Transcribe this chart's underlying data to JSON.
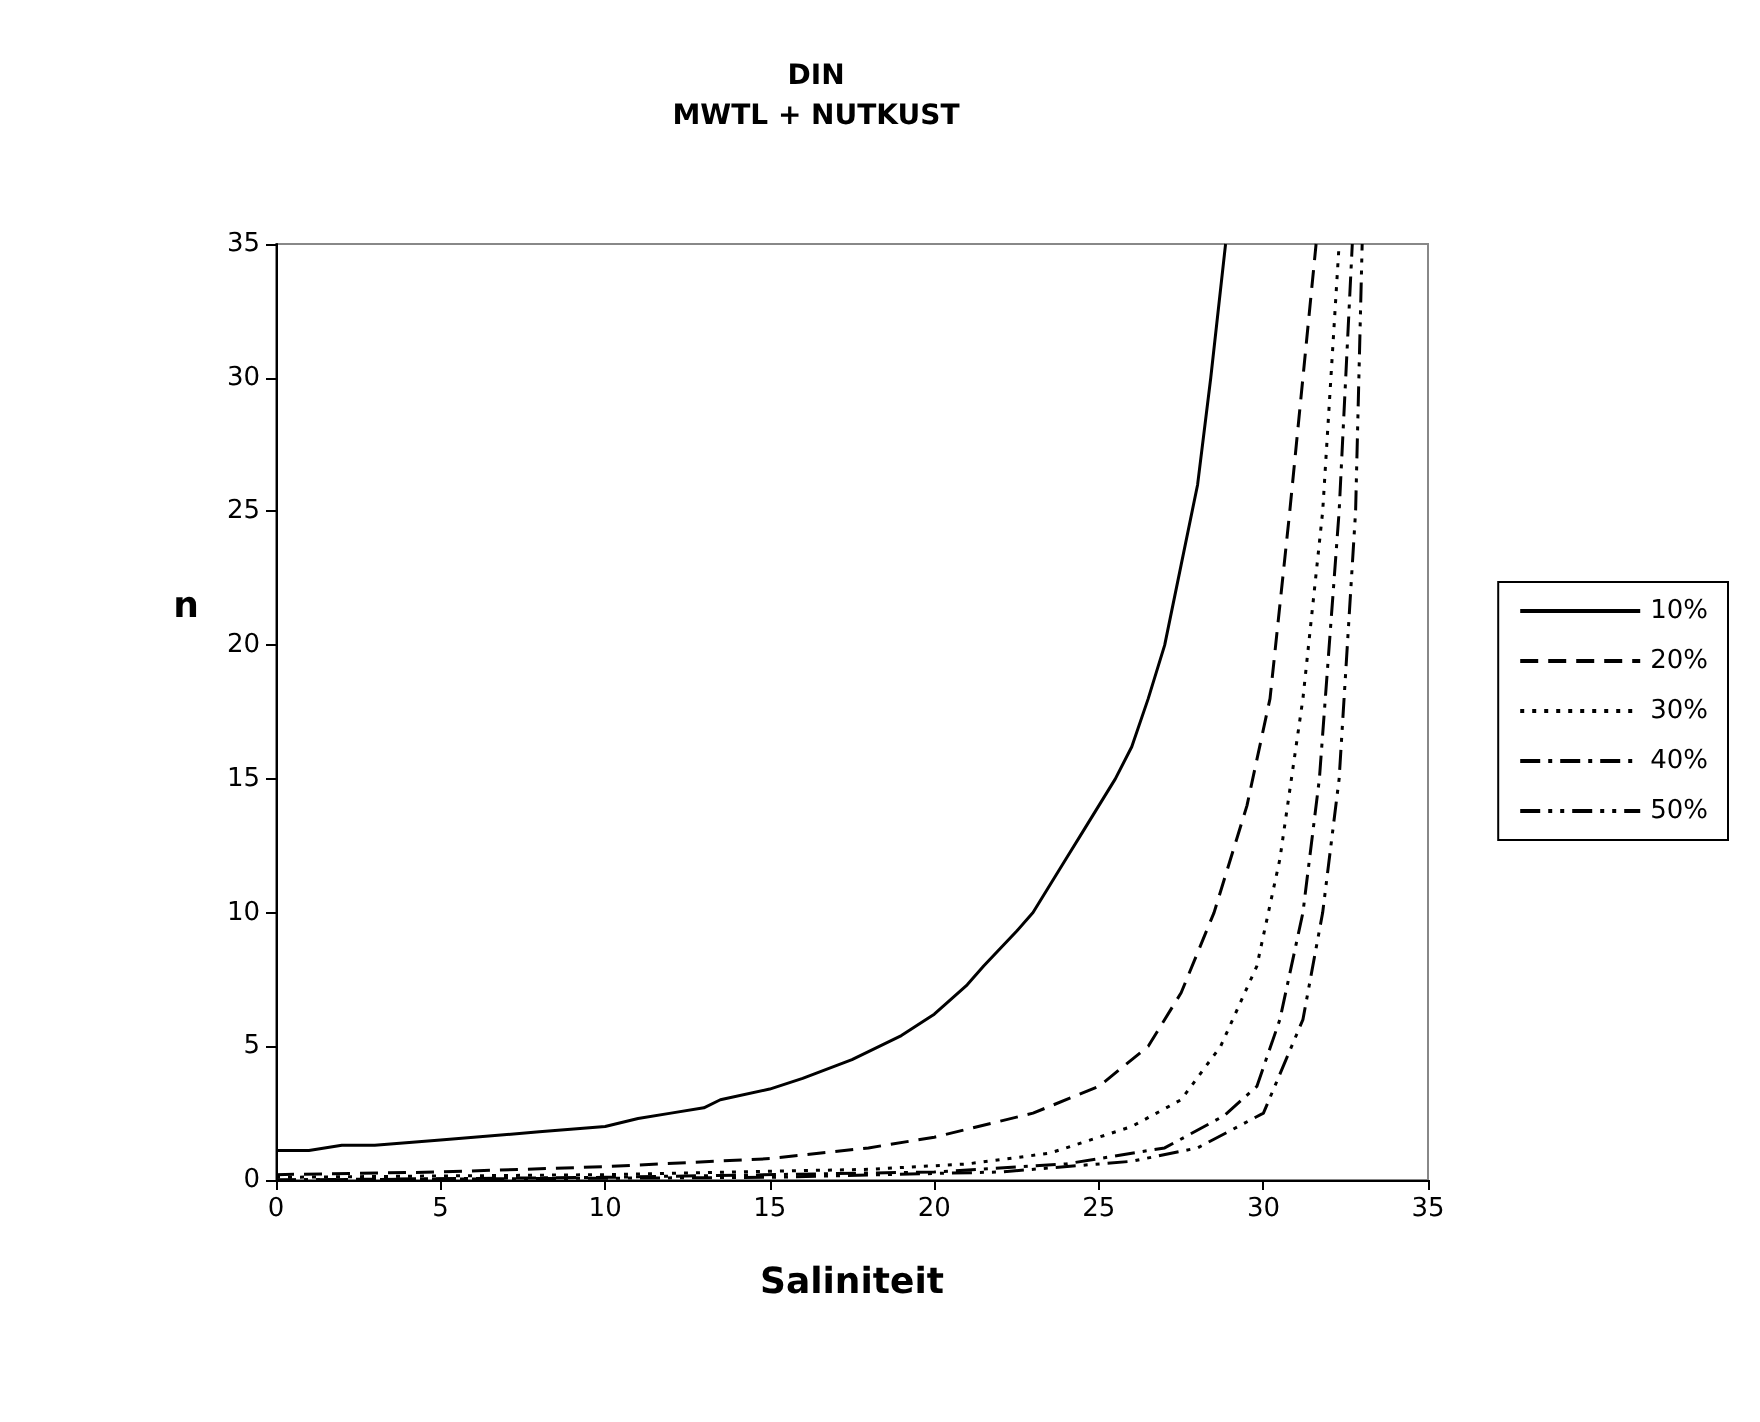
{
  "chart_data": {
    "type": "line",
    "title": "DIN",
    "subtitle": "MWTL + NUTKUST",
    "xlabel": "Saliniteit",
    "ylabel": "n",
    "xlim": [
      0,
      35
    ],
    "xticks": [
      0,
      5,
      10,
      15,
      20,
      25,
      30,
      35
    ],
    "ylim": [
      0,
      35
    ],
    "yticks": [
      0,
      5,
      10,
      15,
      20,
      25,
      30,
      35
    ],
    "grid": false,
    "legend": "right",
    "marker": "none",
    "series": [
      {
        "name": "10%",
        "color": "#000000",
        "line_style": "solid",
        "x": [
          0,
          1,
          2,
          3,
          5,
          8,
          10,
          11,
          12,
          13,
          13.5,
          15,
          16,
          17.5,
          19,
          20,
          21,
          21.5,
          22.5,
          23,
          24,
          24.5,
          25.5,
          26,
          26.5,
          27,
          27.5,
          28,
          28.4,
          28.85
        ],
        "values": [
          1.1,
          1.1,
          1.3,
          1.3,
          1.5,
          1.8,
          2.0,
          2.3,
          2.5,
          2.7,
          3.0,
          3.4,
          3.8,
          4.5,
          5.4,
          6.2,
          7.3,
          8.0,
          9.3,
          10.0,
          12.0,
          13.0,
          15.0,
          16.2,
          18.0,
          20.0,
          23.0,
          26.0,
          30.0,
          35.0
        ]
      },
      {
        "name": "20%",
        "color": "#000000",
        "line_style": "dashed",
        "x": [
          0,
          5,
          10,
          15,
          18,
          20,
          23,
          25,
          26.5,
          27.5,
          28.5,
          29.5,
          30.2,
          30.8,
          31.2,
          31.6
        ],
        "values": [
          0.2,
          0.3,
          0.5,
          0.8,
          1.2,
          1.6,
          2.5,
          3.5,
          5.0,
          7.0,
          10.0,
          14.0,
          18.0,
          25.0,
          30.0,
          35.0
        ]
      },
      {
        "name": "30%",
        "color": "#000000",
        "line_style": "dotted",
        "x": [
          0,
          10,
          18,
          21,
          23.5,
          26,
          27.5,
          28.7,
          29.8,
          30.5,
          31.2,
          31.8,
          32.3
        ],
        "values": [
          0.1,
          0.2,
          0.4,
          0.6,
          1.0,
          2.0,
          3.0,
          5.0,
          8.0,
          12.0,
          18.0,
          25.0,
          35.0
        ]
      },
      {
        "name": "40%",
        "color": "#000000",
        "line_style": "dashdot",
        "x": [
          0,
          10,
          20,
          24,
          27,
          28.8,
          29.8,
          30.5,
          31.2,
          31.7,
          32.3,
          32.7
        ],
        "values": [
          0,
          0.1,
          0.3,
          0.6,
          1.2,
          2.4,
          3.5,
          6.0,
          10.0,
          15.0,
          25.0,
          35.0
        ]
      },
      {
        "name": "50%",
        "color": "#000000",
        "line_style": "dashdotdot",
        "x": [
          0,
          15,
          22,
          26,
          28,
          30,
          31.2,
          31.8,
          32.3,
          32.8,
          33
        ],
        "values": [
          0,
          0.1,
          0.3,
          0.7,
          1.2,
          2.5,
          6.0,
          10.0,
          15.0,
          25.0,
          35.0
        ]
      }
    ]
  }
}
